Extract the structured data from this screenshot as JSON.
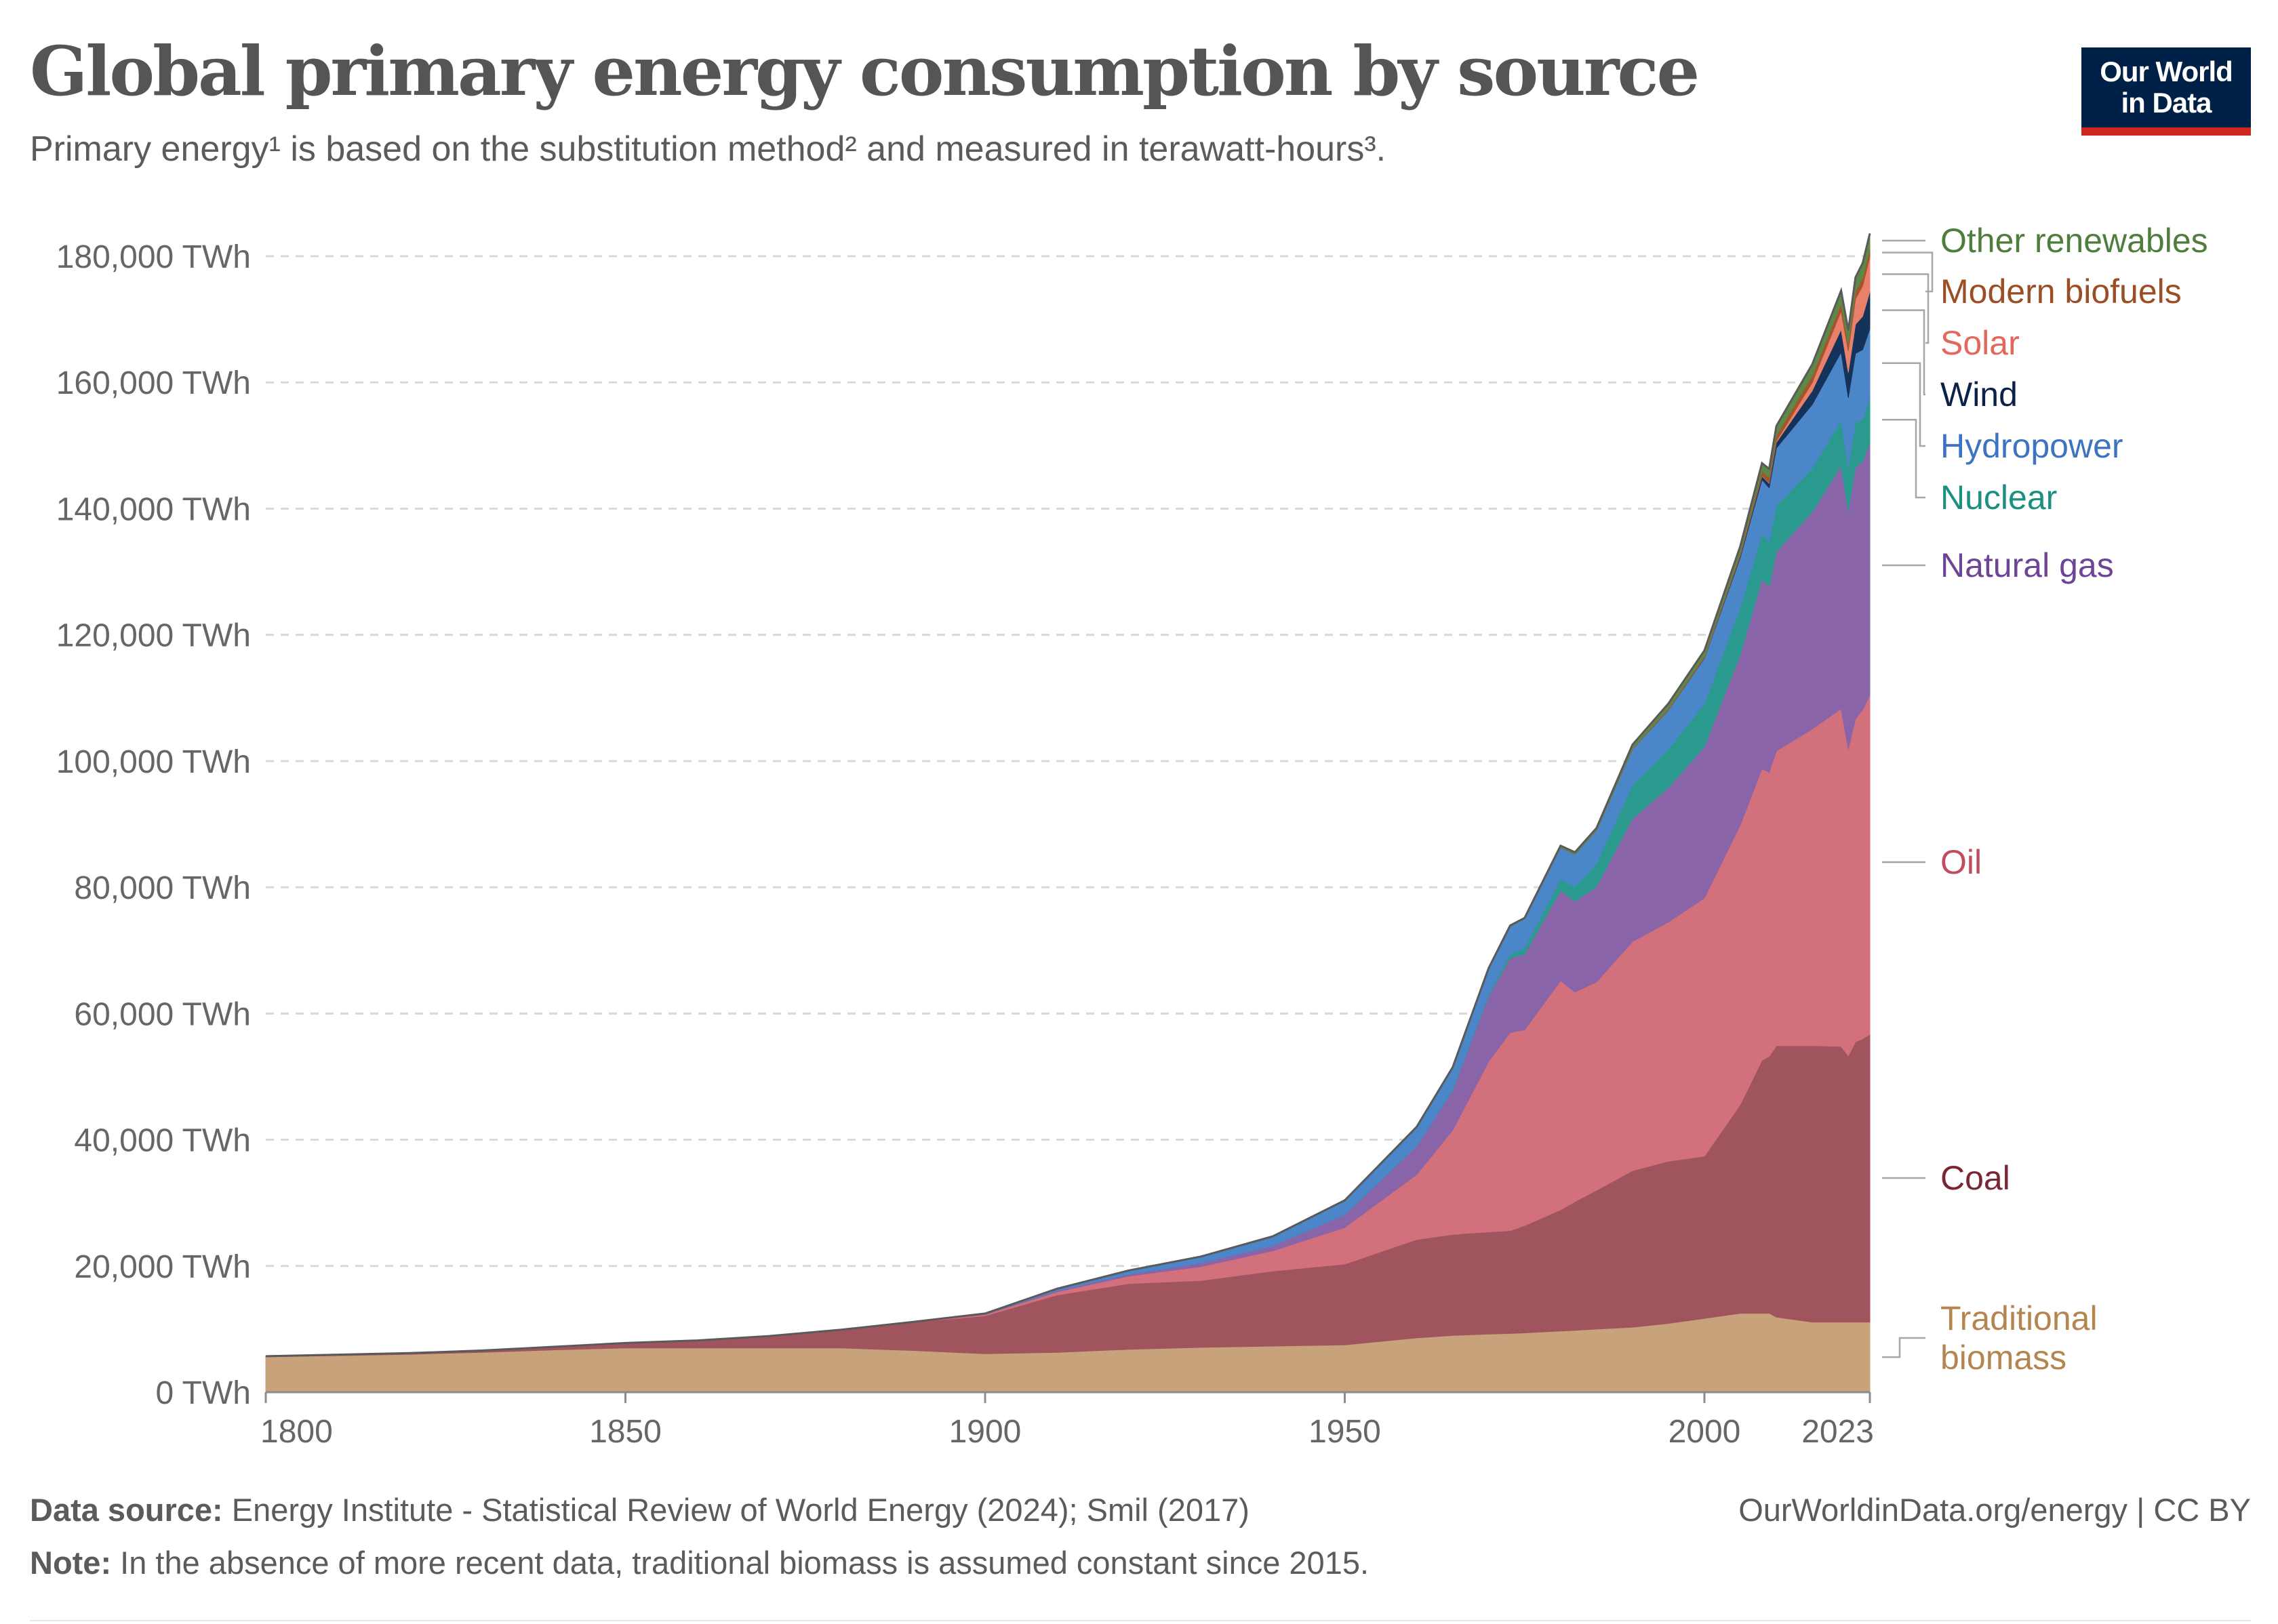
{
  "title": "Global primary energy consumption by source",
  "subtitle": "Primary energy¹ is based on the substitution method² and measured in terawatt-hours³.",
  "logo": {
    "line1": "Our World",
    "line2": "in Data"
  },
  "footer": {
    "source_label": "Data source:",
    "source_text": "Energy Institute - Statistical Review of World Energy (2024); Smil (2017)",
    "note_label": "Note:",
    "note_text": "In the absence of more recent data, traditional biomass is assumed constant since 2015.",
    "url": "OurWorldinData.org/energy | CC BY"
  },
  "chart_data": {
    "type": "area",
    "stacked": true,
    "unit": "TWh",
    "xlim": [
      1800,
      2023
    ],
    "ylim": [
      0,
      180000
    ],
    "grid": true,
    "y_ticks": [
      {
        "value": 0,
        "label": "0 TWh"
      },
      {
        "value": 20000,
        "label": "20,000 TWh"
      },
      {
        "value": 40000,
        "label": "40,000 TWh"
      },
      {
        "value": 60000,
        "label": "60,000 TWh"
      },
      {
        "value": 80000,
        "label": "80,000 TWh"
      },
      {
        "value": 100000,
        "label": "100,000 TWh"
      },
      {
        "value": 120000,
        "label": "120,000 TWh"
      },
      {
        "value": 140000,
        "label": "140,000 TWh"
      },
      {
        "value": 160000,
        "label": "160,000 TWh"
      },
      {
        "value": 180000,
        "label": "180,000 TWh"
      }
    ],
    "x_ticks": [
      {
        "value": 1800,
        "label": "1800"
      },
      {
        "value": 1850,
        "label": "1850"
      },
      {
        "value": 1900,
        "label": "1900"
      },
      {
        "value": 1950,
        "label": "1950"
      },
      {
        "value": 2000,
        "label": "2000"
      },
      {
        "value": 2023,
        "label": "2023"
      }
    ],
    "x": [
      1800,
      1810,
      1820,
      1830,
      1840,
      1850,
      1860,
      1870,
      1880,
      1890,
      1900,
      1910,
      1920,
      1930,
      1940,
      1950,
      1960,
      1965,
      1970,
      1973,
      1975,
      1980,
      1982,
      1985,
      1990,
      1995,
      2000,
      2005,
      2008,
      2009,
      2010,
      2015,
      2019,
      2020,
      2021,
      2022,
      2023
    ],
    "series": [
      {
        "name": "Traditional biomass",
        "color": "#c8a27a",
        "values": [
          5600,
          5800,
          6000,
          6300,
          6700,
          7000,
          7000,
          7000,
          7000,
          6600,
          6100,
          6300,
          6800,
          7100,
          7300,
          7500,
          8600,
          9000,
          9200,
          9300,
          9400,
          9700,
          9800,
          10000,
          10300,
          10900,
          11700,
          12500,
          12500,
          12500,
          11900,
          11100,
          11100,
          11100,
          11100,
          11100,
          11100
        ]
      },
      {
        "name": "Coal",
        "color": "#a0555e",
        "values": [
          100,
          150,
          200,
          300,
          500,
          800,
          1200,
          1900,
          2900,
          4500,
          6000,
          9100,
          10400,
          10600,
          11900,
          12800,
          15600,
          16000,
          16200,
          16300,
          17000,
          19200,
          20400,
          22000,
          24800,
          25700,
          25700,
          33100,
          40100,
          40700,
          43000,
          43800,
          43700,
          42200,
          44400,
          44900,
          45600
        ]
      },
      {
        "name": "Oil",
        "color": "#d2707c",
        "values": [
          0,
          0,
          0,
          0,
          0,
          0,
          0,
          0,
          0,
          50,
          200,
          500,
          1200,
          2200,
          3200,
          5800,
          10300,
          16500,
          27000,
          31400,
          31000,
          36300,
          33200,
          33000,
          36300,
          37900,
          40900,
          44300,
          46200,
          45000,
          46700,
          50200,
          53500,
          48600,
          51200,
          52100,
          53800
        ]
      },
      {
        "name": "Natural gas",
        "color": "#8a64a8",
        "values": [
          0,
          0,
          0,
          0,
          0,
          0,
          0,
          0,
          0,
          0,
          70,
          200,
          300,
          600,
          800,
          2000,
          4500,
          6300,
          10400,
          11800,
          12000,
          14300,
          14400,
          15100,
          19500,
          21300,
          24000,
          27000,
          30000,
          29500,
          31600,
          34400,
          38500,
          37700,
          39900,
          39300,
          40100
        ]
      },
      {
        "name": "Nuclear",
        "color": "#2b9a8e",
        "values": [
          0,
          0,
          0,
          0,
          0,
          0,
          0,
          0,
          0,
          0,
          0,
          0,
          0,
          0,
          0,
          0,
          10,
          100,
          200,
          600,
          1000,
          1800,
          2300,
          3600,
          5300,
          6100,
          6800,
          7400,
          7200,
          7000,
          7200,
          6900,
          7200,
          6900,
          7100,
          6700,
          7000
        ]
      },
      {
        "name": "Hydropower",
        "color": "#4a86c8",
        "values": [
          0,
          0,
          0,
          0,
          0,
          0,
          0,
          0,
          0,
          0,
          100,
          300,
          600,
          1000,
          1500,
          2300,
          3000,
          3500,
          4100,
          4400,
          4600,
          5000,
          5100,
          5300,
          5700,
          6200,
          7200,
          8000,
          8600,
          8600,
          9200,
          10100,
          10800,
          11100,
          10900,
          11100,
          10900
        ]
      },
      {
        "name": "Wind",
        "color": "#15325a",
        "values": [
          0,
          0,
          0,
          0,
          0,
          0,
          0,
          0,
          0,
          0,
          0,
          0,
          0,
          0,
          0,
          0,
          0,
          0,
          0,
          0,
          0,
          0,
          0,
          0,
          10,
          30,
          80,
          280,
          550,
          700,
          900,
          2200,
          3600,
          4000,
          4600,
          5300,
          5900
        ]
      },
      {
        "name": "Solar",
        "color": "#e8806a",
        "values": [
          0,
          0,
          0,
          0,
          0,
          0,
          0,
          0,
          0,
          0,
          0,
          0,
          0,
          0,
          0,
          0,
          0,
          0,
          0,
          0,
          0,
          0,
          0,
          0,
          0,
          0,
          10,
          30,
          60,
          100,
          200,
          1300,
          2900,
          3400,
          4000,
          4800,
          5500
        ]
      },
      {
        "name": "Modern biofuels",
        "color": "#a5542e",
        "values": [
          0,
          0,
          0,
          0,
          0,
          0,
          0,
          0,
          0,
          0,
          0,
          0,
          0,
          0,
          0,
          0,
          0,
          0,
          0,
          0,
          0,
          0,
          0,
          0,
          100,
          200,
          250,
          400,
          700,
          800,
          900,
          1100,
          1250,
          1150,
          1250,
          1300,
          1350
        ]
      },
      {
        "name": "Other renewables",
        "color": "#5c8a46",
        "values": [
          0,
          0,
          0,
          0,
          0,
          0,
          0,
          0,
          0,
          0,
          0,
          0,
          0,
          0,
          0,
          0,
          50,
          80,
          100,
          150,
          150,
          300,
          350,
          400,
          600,
          800,
          900,
          1100,
          1300,
          1400,
          1500,
          1800,
          2000,
          2100,
          2200,
          2300,
          2350
        ]
      }
    ],
    "legend_placement": "right",
    "legend_labels": [
      {
        "text": "Other renewables",
        "color": "#4e7d3c"
      },
      {
        "text": "Modern biofuels",
        "color": "#9b4e24"
      },
      {
        "text": "Solar",
        "color": "#e3675a"
      },
      {
        "text": "Wind",
        "color": "#0b2147"
      },
      {
        "text": "Hydropower",
        "color": "#3c74c2"
      },
      {
        "text": "Nuclear",
        "color": "#1b8f80"
      },
      {
        "text": "Natural gas",
        "color": "#6d4596"
      },
      {
        "text": "Oil",
        "color": "#c24c5f"
      },
      {
        "text": "Coal",
        "color": "#7a2633"
      },
      {
        "text": "Traditional\nbiomass",
        "color": "#b58550"
      }
    ]
  }
}
